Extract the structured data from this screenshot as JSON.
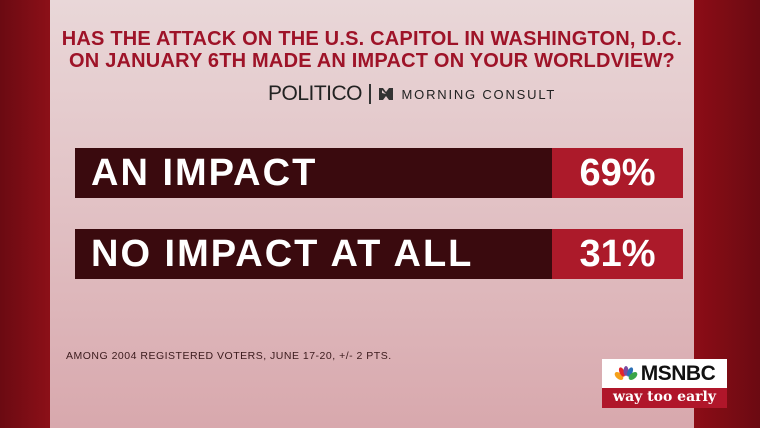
{
  "title": "HAS THE ATTACK ON THE U.S. CAPITOL IN WASHINGTON, D.C. ON JANUARY 6TH MADE AN IMPACT ON YOUR WORLDVIEW?",
  "sources": {
    "politico": "POLITICO",
    "morning_consult": "MORNING CONSULT"
  },
  "footnote": "AMONG 2004 REGISTERED VOTERS, JUNE 17-20, +/- 2 PTS.",
  "network": {
    "name": "MSNBC",
    "show": "way too early"
  },
  "chart_data": {
    "type": "bar",
    "title": "HAS THE ATTACK ON THE U.S. CAPITOL IN WASHINGTON, D.C. ON JANUARY 6TH MADE AN IMPACT ON YOUR WORLDVIEW?",
    "categories": [
      "AN IMPACT",
      "NO IMPACT AT ALL"
    ],
    "values": [
      69,
      31
    ],
    "labels": [
      "69%",
      "31%"
    ],
    "unit": "%"
  },
  "colors": {
    "title": "#9e1328",
    "label_bg": "#3a0a0e",
    "value_bg": "#ac1a2a"
  }
}
